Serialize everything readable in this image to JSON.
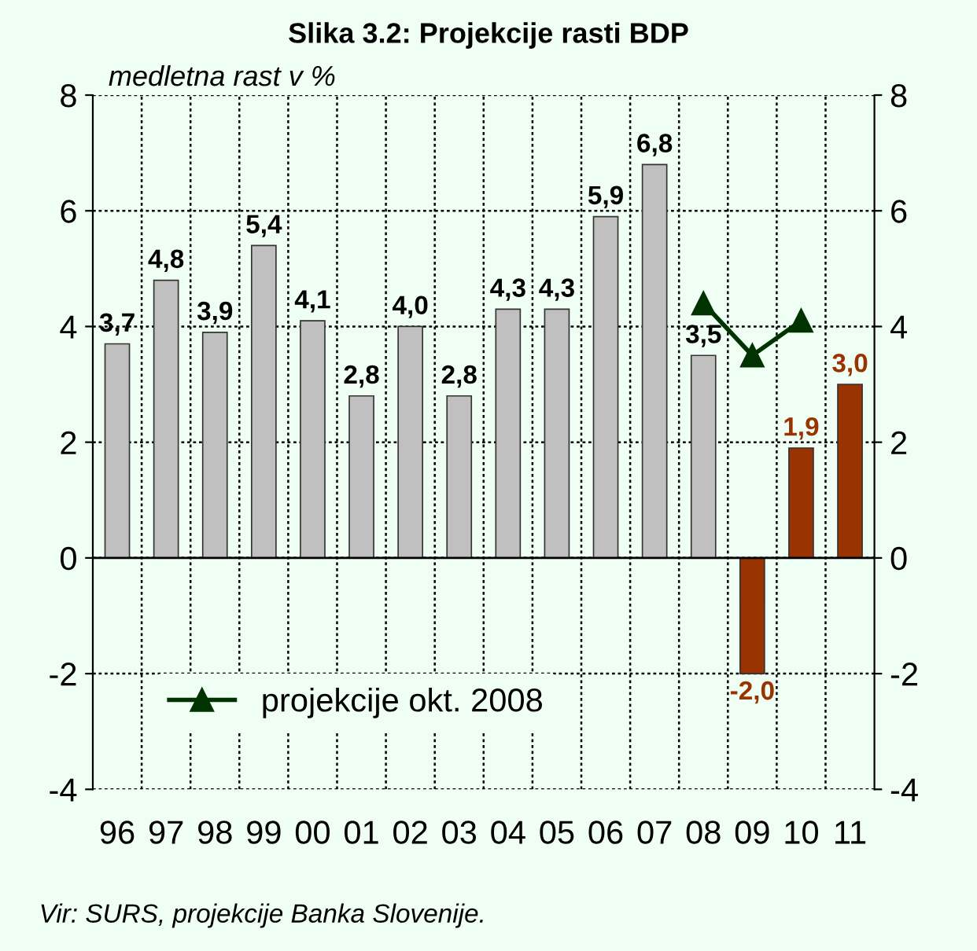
{
  "chart_data": {
    "type": "bar",
    "title": "Slika 3.2: Projekcije rasti BDP",
    "ylabel": "medletna rast v %",
    "categories": [
      "96",
      "97",
      "98",
      "99",
      "00",
      "01",
      "02",
      "03",
      "04",
      "05",
      "06",
      "07",
      "08",
      "09",
      "10",
      "11"
    ],
    "series": [
      {
        "colors": [
          "#c0c0c0",
          "#c0c0c0",
          "#c0c0c0",
          "#c0c0c0",
          "#c0c0c0",
          "#c0c0c0",
          "#c0c0c0",
          "#c0c0c0",
          "#c0c0c0",
          "#c0c0c0",
          "#c0c0c0",
          "#c0c0c0",
          "#c0c0c0",
          "#993300",
          "#993300",
          "#993300"
        ],
        "values": [
          3.7,
          4.8,
          3.9,
          5.4,
          4.1,
          2.8,
          4.0,
          2.8,
          4.3,
          4.3,
          5.9,
          6.8,
          3.5,
          -2.0,
          1.9,
          3.0
        ],
        "value_labels": [
          "3,7",
          "4,8",
          "3,9",
          "5,4",
          "4,1",
          "2,8",
          "4,0",
          "2,8",
          "4,3",
          "4,3",
          "5,9",
          "6,8",
          "3,5",
          "-2,0",
          "1,9",
          "3,0"
        ]
      },
      {
        "type": "line",
        "name": "projekcije okt. 2008",
        "color": "#003300",
        "marker": "triangle",
        "values": [
          null,
          null,
          null,
          null,
          null,
          null,
          null,
          null,
          null,
          null,
          null,
          null,
          4.4,
          3.5,
          4.1,
          null
        ]
      }
    ],
    "ylim": [
      -4,
      8
    ],
    "yticks": [
      -4,
      -2,
      0,
      2,
      4,
      6,
      8
    ],
    "y2lim": [
      -4,
      8
    ],
    "y2ticks": [
      -4,
      -2,
      0,
      2,
      4,
      6,
      8
    ],
    "grid": true,
    "legend": "bottom left",
    "annotations": [
      "Vir: SURS, projekcije Banka Slovenije."
    ]
  }
}
